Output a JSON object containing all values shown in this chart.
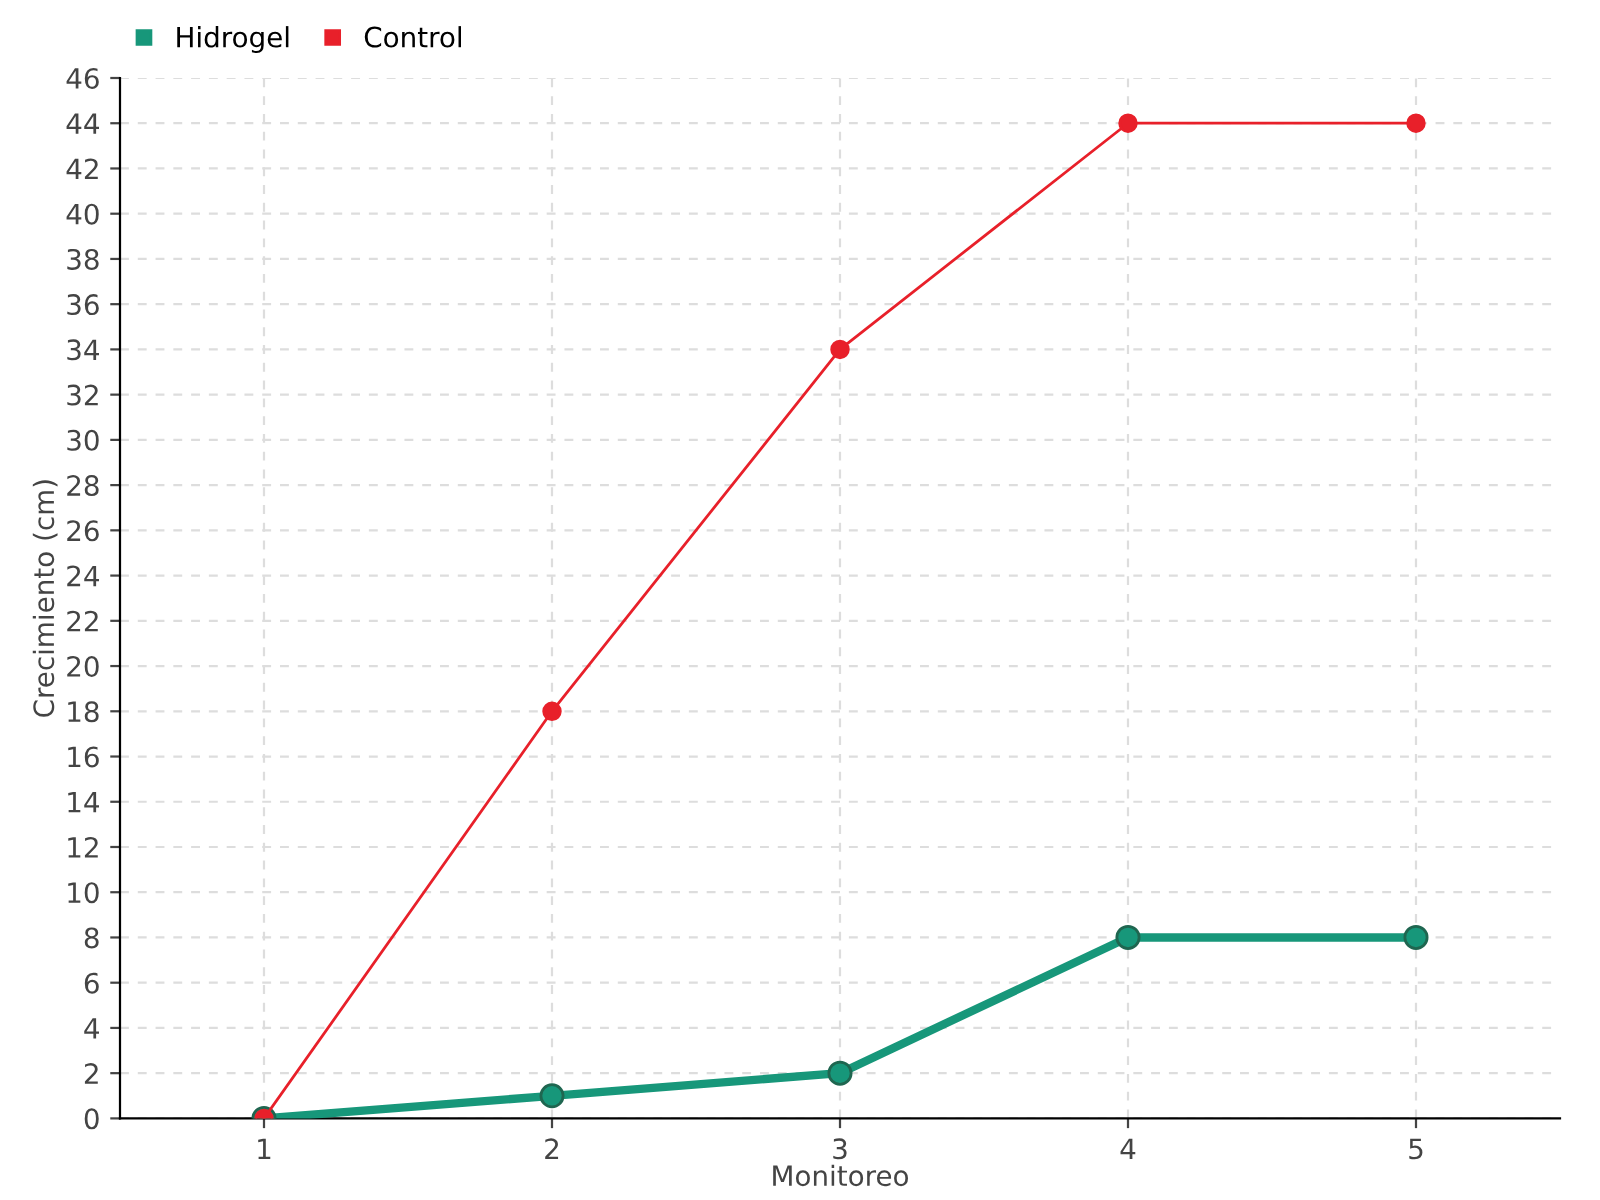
{
  "chart_data": {
    "type": "line",
    "xlabel": "Monitoreo",
    "ylabel": "Crecimiento (cm)",
    "x": [
      1,
      2,
      3,
      4,
      5
    ],
    "series": [
      {
        "name": "Hidrogel",
        "color": "#17977a",
        "values": [
          0,
          1,
          2,
          8,
          8
        ]
      },
      {
        "name": "Control",
        "color": "#e8202a",
        "values": [
          0,
          18,
          34,
          44,
          44
        ]
      }
    ],
    "xlim": [
      0.5,
      5.5
    ],
    "xticks": [
      1,
      2,
      3,
      4,
      5
    ],
    "ylim": [
      0,
      46
    ],
    "yticks": [
      0,
      2,
      4,
      6,
      8,
      10,
      12,
      14,
      16,
      18,
      20,
      22,
      24,
      26,
      28,
      30,
      32,
      34,
      36,
      38,
      40,
      42,
      44,
      46
    ],
    "grid": true,
    "legend": "top left",
    "marker": "circle"
  }
}
